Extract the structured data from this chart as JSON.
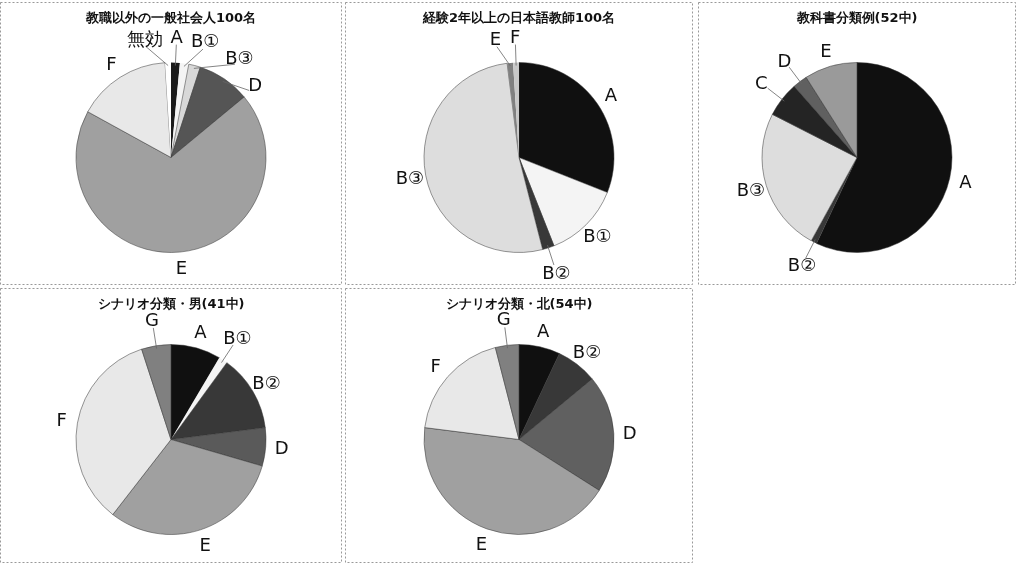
{
  "chart_data": [
    {
      "type": "pie",
      "title": "教職以外の一般社会人100名",
      "categories": [
        "A",
        "B①",
        "B③",
        "D",
        "E",
        "F",
        "無効"
      ],
      "values": [
        1.5,
        1.5,
        2,
        9,
        69,
        16,
        1
      ],
      "colors": [
        "#1a1a1a",
        "#f4f4f4",
        "#d8d8d8",
        "#555555",
        "#a0a0a0",
        "#e8e8e8",
        "#ffffff"
      ]
    },
    {
      "type": "pie",
      "title": "経験2年以上の日本語教師100名",
      "categories": [
        "A",
        "B①",
        "B②",
        "B③",
        "E",
        "F"
      ],
      "values": [
        31,
        13,
        2,
        52,
        1,
        1
      ],
      "colors": [
        "#101010",
        "#f4f4f4",
        "#383838",
        "#dddddd",
        "#808080",
        "#c8c8c8"
      ]
    },
    {
      "type": "pie",
      "title": "教科書分類例(52中)",
      "categories": [
        "A",
        "B②",
        "B③",
        "C",
        "D",
        "E"
      ],
      "values": [
        57,
        1,
        24.5,
        6,
        2.5,
        9
      ],
      "colors": [
        "#101010",
        "#383838",
        "#dddddd",
        "#242424",
        "#606060",
        "#9a9a9a"
      ]
    },
    {
      "type": "pie",
      "title": "シナリオ分類・男(41中)",
      "categories": [
        "A",
        "B①",
        "B②",
        "D",
        "E",
        "F",
        "G"
      ],
      "values": [
        8.5,
        1.5,
        13,
        6.5,
        31,
        34.5,
        5
      ],
      "colors": [
        "#101010",
        "#f4f4f4",
        "#383838",
        "#5a5a5a",
        "#a0a0a0",
        "#e8e8e8",
        "#808080"
      ]
    },
    {
      "type": "pie",
      "title": "シナリオ分類・北(54中)",
      "categories": [
        "A",
        "B②",
        "D",
        "E",
        "F",
        "G"
      ],
      "values": [
        7,
        7,
        20,
        43,
        19,
        4
      ],
      "colors": [
        "#101010",
        "#383838",
        "#606060",
        "#a0a0a0",
        "#e8e8e8",
        "#808080"
      ]
    }
  ]
}
